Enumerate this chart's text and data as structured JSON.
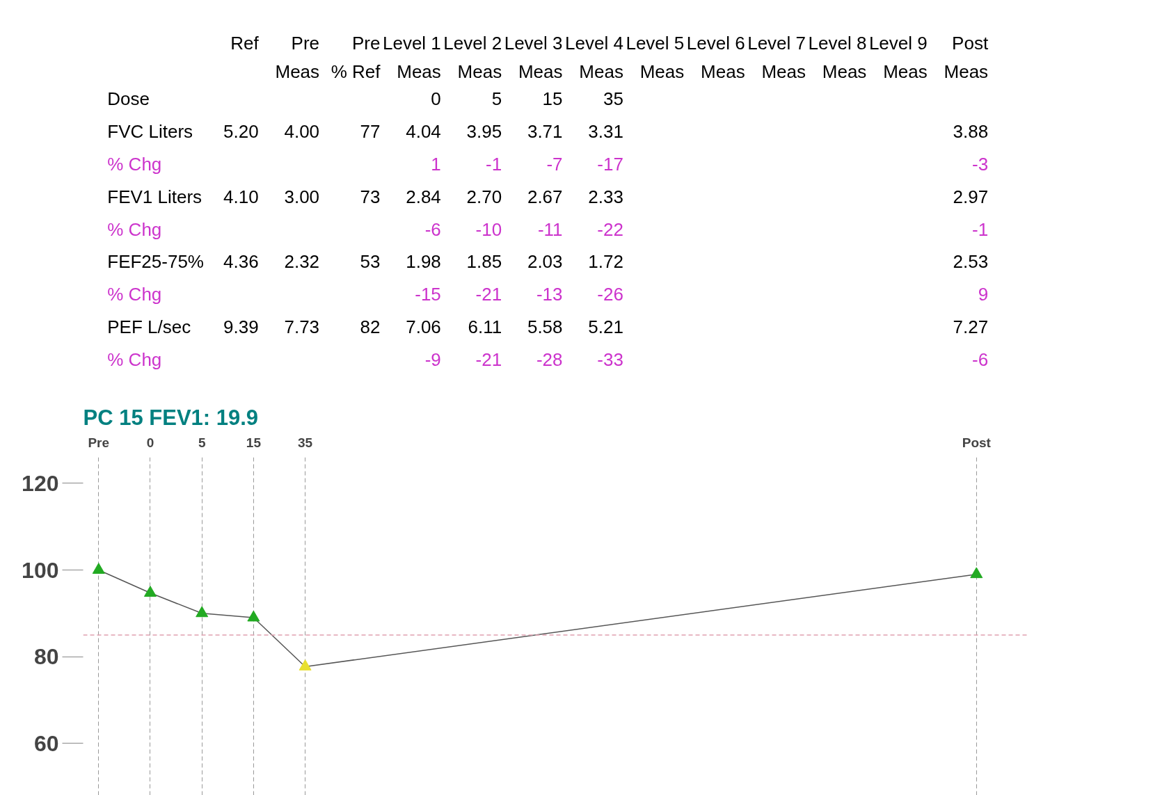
{
  "chart_data": [
    {
      "type": "other",
      "categories": [
        "Ref",
        "Pre\nMeas",
        "Pre\n% Ref",
        "Level 1\nMeas",
        "Level 2\nMeas",
        "Level 3\nMeas",
        "Level 4\nMeas",
        "Level 5\nMeas",
        "Level 6\nMeas",
        "Level 7\nMeas",
        "Level 8\nMeas",
        "Level 9\nMeas",
        "Post\nMeas"
      ],
      "y_categories": [
        "Dose",
        "FVC  Liters",
        "% Chg",
        "FEV1 Liters",
        "% Chg",
        "FEF25-75%",
        "% Chg",
        "  PEF L/sec",
        "% Chg"
      ],
      "colors": [
        "#000000",
        "#000000",
        "#cc33cc",
        "#000000",
        "#cc33cc",
        "#000000",
        "#cc33cc",
        "#000000",
        "#cc33cc"
      ],
      "cell_labels": [
        [
          null,
          null,
          null,
          "0",
          "5",
          "15",
          "35",
          null,
          null,
          null,
          null,
          null,
          null
        ],
        [
          "5.20",
          "4.00",
          "77",
          "4.04",
          "3.95",
          "3.71",
          "3.31",
          null,
          null,
          null,
          null,
          null,
          "3.88"
        ],
        [
          null,
          null,
          null,
          "1",
          "-1",
          "-7",
          "-17",
          null,
          null,
          null,
          null,
          null,
          "-3"
        ],
        [
          "4.10",
          "3.00",
          "73",
          "2.84",
          "2.70",
          "2.67",
          "2.33",
          null,
          null,
          null,
          null,
          null,
          "2.97"
        ],
        [
          null,
          null,
          null,
          "-6",
          "-10",
          "-11",
          "-22",
          null,
          null,
          null,
          null,
          null,
          "-1"
        ],
        [
          "4.36",
          "2.32",
          "53",
          "1.98",
          "1.85",
          "2.03",
          "1.72",
          null,
          null,
          null,
          null,
          null,
          "2.53"
        ],
        [
          null,
          null,
          null,
          "-15",
          "-21",
          "-13",
          "-26",
          null,
          null,
          null,
          null,
          null,
          "9"
        ],
        [
          "9.39",
          "7.73",
          "82",
          "7.06",
          "6.11",
          "5.58",
          "5.21",
          null,
          null,
          null,
          null,
          null,
          "7.27"
        ],
        [
          null,
          null,
          null,
          "-9",
          "-21",
          "-28",
          "-33",
          null,
          null,
          null,
          null,
          null,
          "-6"
        ]
      ]
    },
    {
      "type": "line",
      "title": "PC 15 FEV1:   19.9",
      "categories": [
        "Pre",
        "0",
        "5",
        "15",
        "35",
        null,
        null,
        null,
        null,
        null,
        null,
        null,
        null,
        null,
        null,
        null,
        null,
        "Post"
      ],
      "series": [
        {
          "color": "#555555",
          "values": [
            100,
            94.7,
            90,
            89,
            77.7,
            null,
            null,
            null,
            null,
            null,
            null,
            null,
            null,
            null,
            null,
            null,
            null,
            99
          ],
          "colors": [
            "#22aa22",
            "#22aa22",
            "#22aa22",
            "#22aa22",
            "#e8e030",
            null,
            null,
            null,
            null,
            null,
            null,
            null,
            null,
            null,
            null,
            null,
            null,
            "#22aa22"
          ]
        }
      ],
      "marker": "triangle",
      "line_style": "solid",
      "ylim": [
        48,
        126
      ],
      "yticks": [
        60,
        80,
        100,
        120
      ],
      "grid": "x",
      "ref_lines": [
        {
          "axis": "y",
          "value": 85,
          "color": "#e0a0b0",
          "line_style": "dashed"
        }
      ]
    }
  ]
}
